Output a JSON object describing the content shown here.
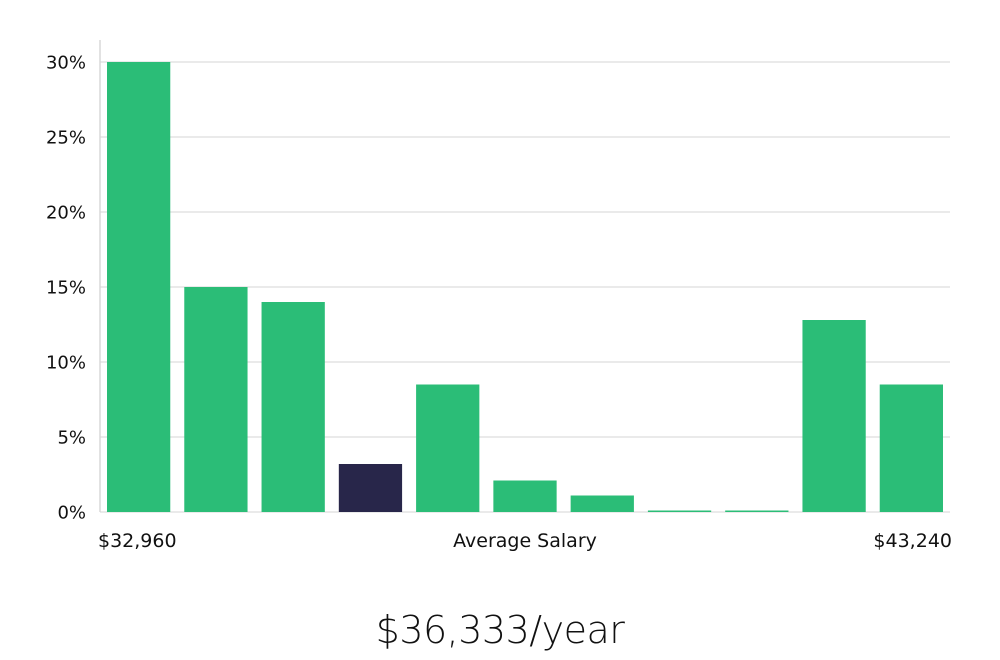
{
  "chart_data": {
    "type": "bar",
    "values": [
      30,
      15,
      14,
      3.2,
      8.5,
      2.1,
      1.1,
      0.1,
      0.1,
      12.8,
      8.5
    ],
    "highlight_index": 3,
    "yticks": [
      "0%",
      "5%",
      "10%",
      "15%",
      "20%",
      "25%",
      "30%"
    ],
    "ylim": [
      0,
      30
    ],
    "x_min_label": "$32,960",
    "x_center_label": "Average Salary",
    "x_max_label": "$43,240",
    "grid": "horizontal",
    "colors": {
      "bar": "#2bbd77",
      "highlight": "#28264a",
      "grid": "#e3e3e3",
      "axis": "#d8d8d8"
    }
  },
  "salary_text": "$36,333/year"
}
